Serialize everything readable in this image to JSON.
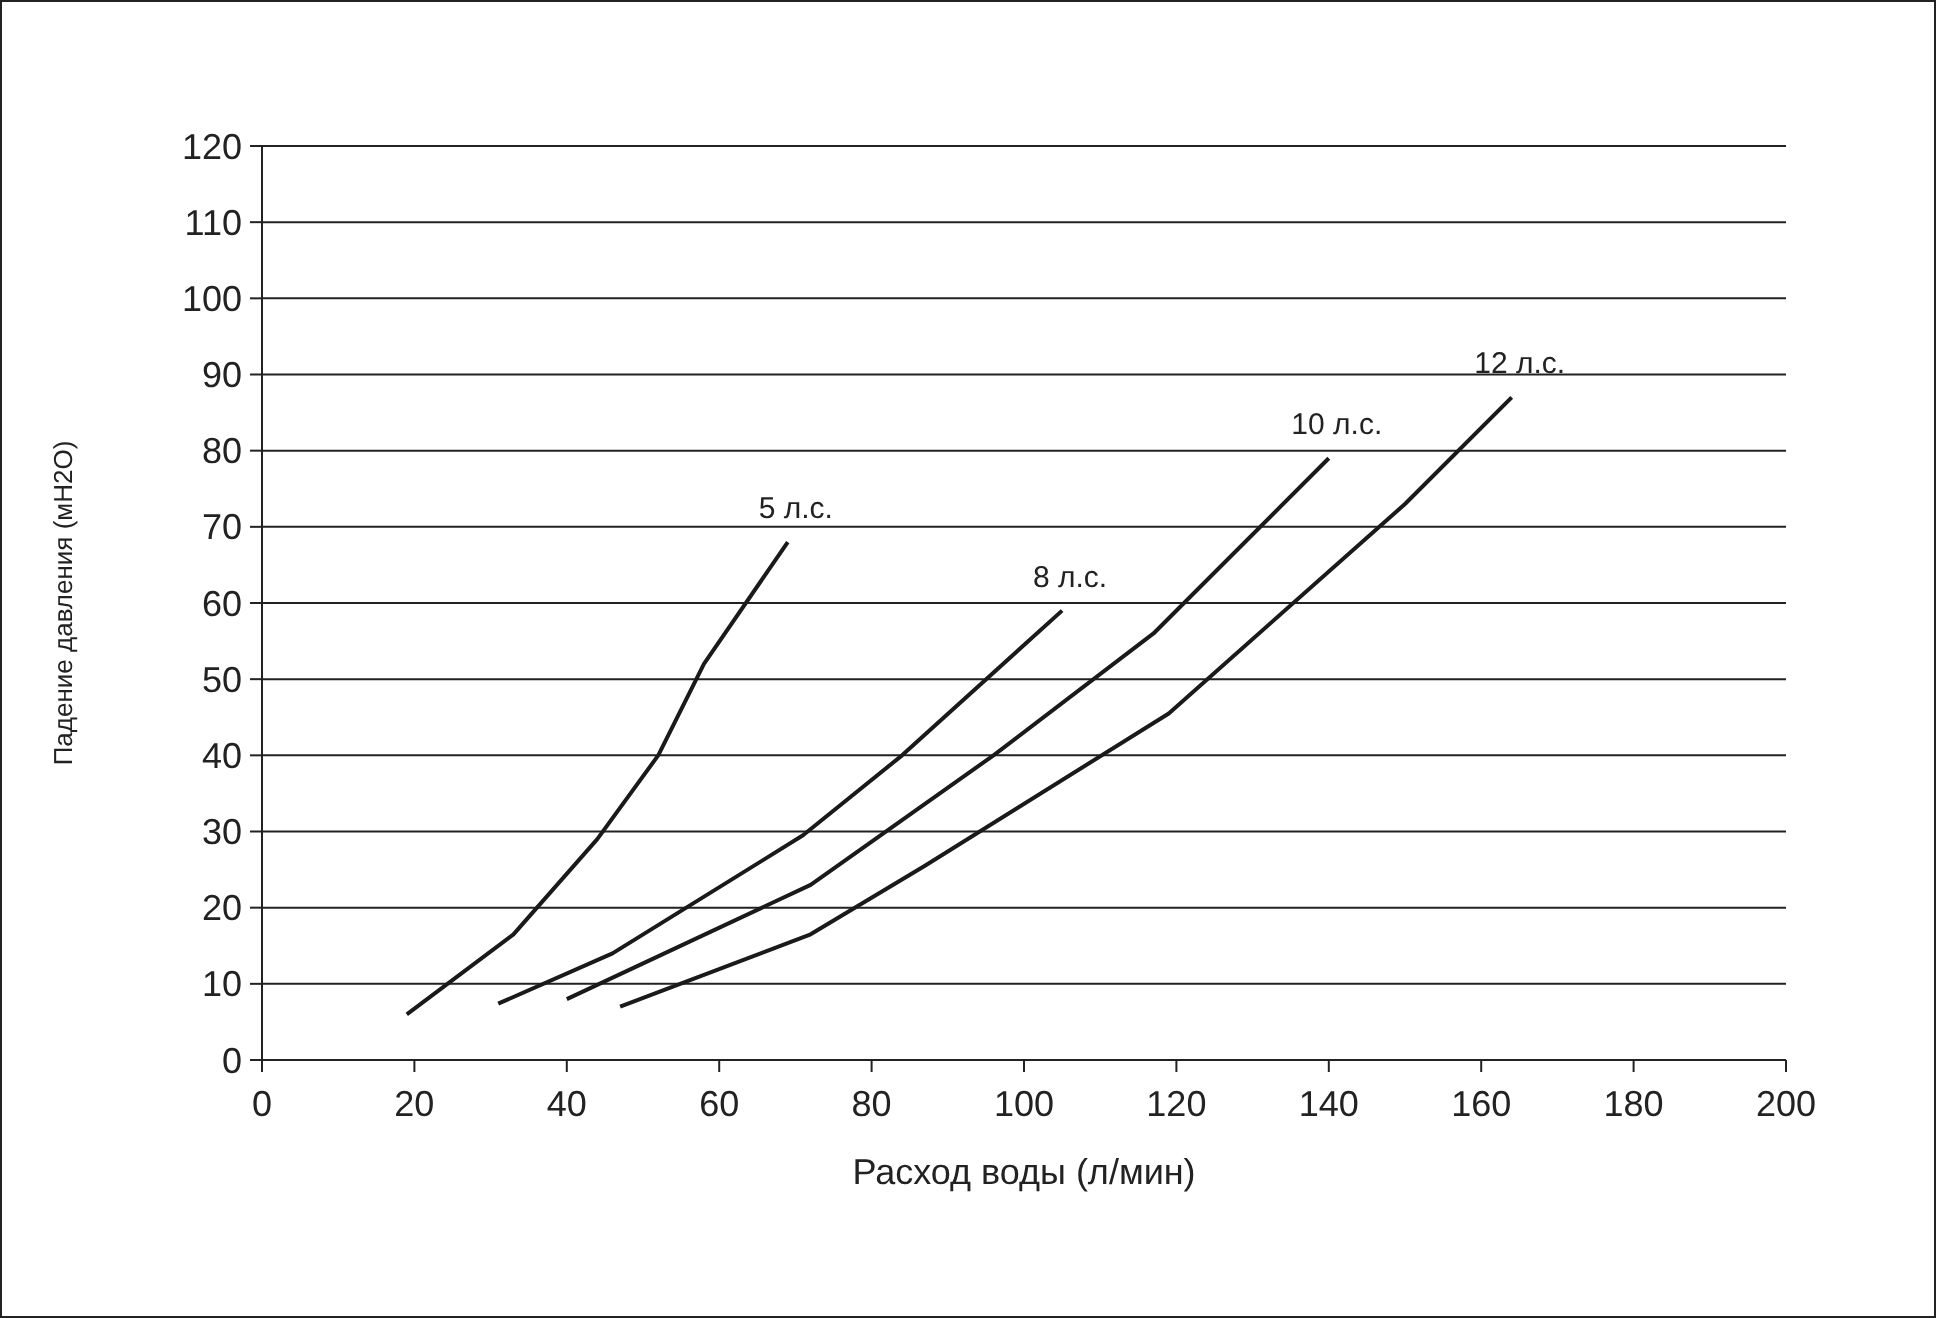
{
  "chart_data": {
    "type": "line",
    "xlabel": "Расход воды (л/мин)",
    "ylabel": "Падение давления (мН2О)",
    "xlim": [
      0,
      200
    ],
    "xticks": [
      0,
      20,
      40,
      60,
      80,
      100,
      120,
      140,
      160,
      180,
      200
    ],
    "ylim": [
      0,
      120
    ],
    "yticks": [
      0,
      10,
      20,
      30,
      40,
      50,
      60,
      70,
      80,
      90,
      100,
      110,
      120
    ],
    "grid": "y",
    "marker": "none",
    "line_style": "solid",
    "series": [
      {
        "name": "5 л.с.",
        "color": "#1a1a1a",
        "x": [
          19,
          33,
          44,
          52,
          58,
          69
        ],
        "values": [
          6,
          16.5,
          29,
          40,
          52,
          68
        ]
      },
      {
        "name": "8 л.с.",
        "color": "#1a1a1a",
        "x": [
          31,
          46,
          71,
          84,
          105
        ],
        "values": [
          7.4,
          14,
          29.5,
          40,
          59
        ]
      },
      {
        "name": "10 л.с.",
        "color": "#1a1a1a",
        "x": [
          40,
          72,
          96,
          117,
          121,
          140
        ],
        "values": [
          8,
          23,
          40,
          56,
          60,
          79
        ]
      },
      {
        "name": "12 л.с.",
        "color": "#1a1a1a",
        "x": [
          47,
          72,
          87,
          119,
          150,
          164
        ],
        "values": [
          7,
          16.5,
          25.5,
          45.5,
          73,
          87
        ]
      }
    ]
  }
}
